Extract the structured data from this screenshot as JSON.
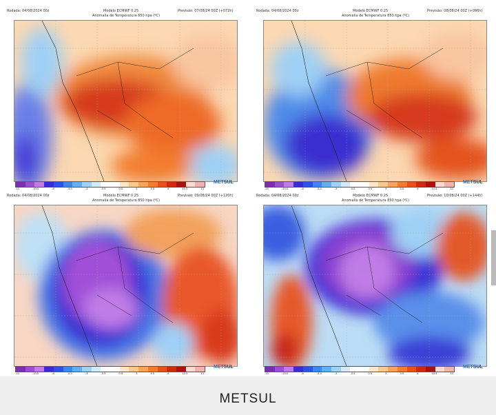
{
  "panels": [
    {
      "run": "Rodada: 04/08/2024 00z",
      "model": "Modelo ECMWF 0.25",
      "forecast": "Previsão: 07/08/24 00Z (+072h)",
      "title": "Anomalia de Temperatura 850 hpa (ºC)"
    },
    {
      "run": "Rodada: 04/08/2024 00z",
      "model": "Modelo ECMWF 0.25",
      "forecast": "Previsão: 08/08/24 00Z (+096h)",
      "title": "Anomalia de Temperatura 850 hpa (ºC)"
    },
    {
      "run": "Rodada: 04/08/2024 00z",
      "model": "Modelo ECMWF 0.25",
      "forecast": "Previsão: 09/08/24 00Z (+120h)",
      "title": "Anomalia de Temperatura 850 hpa (ºC)"
    },
    {
      "run": "Rodada: 04/08/2024 00z",
      "model": "Modelo ECMWF 0.25",
      "forecast": "Previsão: 10/08/24 00Z (+144h)",
      "title": "Anomalia de Temperatura 850 hpa (ºC)"
    }
  ],
  "colorbar": {
    "ticks": [
      "-13",
      "-10.5",
      "-8",
      "-5.5",
      "-3",
      "-0.5",
      "0.5",
      "3",
      "5.5",
      "8",
      "10.5",
      "13"
    ],
    "colors": [
      "#7d2db0",
      "#9a4fd0",
      "#c07be6",
      "#3b2bd0",
      "#2f52e6",
      "#3f86ee",
      "#64aff2",
      "#9fd0f5",
      "#d3ebf8",
      "#ffffff",
      "#ffffff",
      "#fde7c8",
      "#fbc890",
      "#f8a45c",
      "#f27d2e",
      "#e4521a",
      "#cc2b12",
      "#a8120f",
      "#ffd9d2",
      "#f2b3ad"
    ]
  },
  "logo": {
    "a": "MET",
    "b": "SUL"
  },
  "caption": "METSUL"
}
